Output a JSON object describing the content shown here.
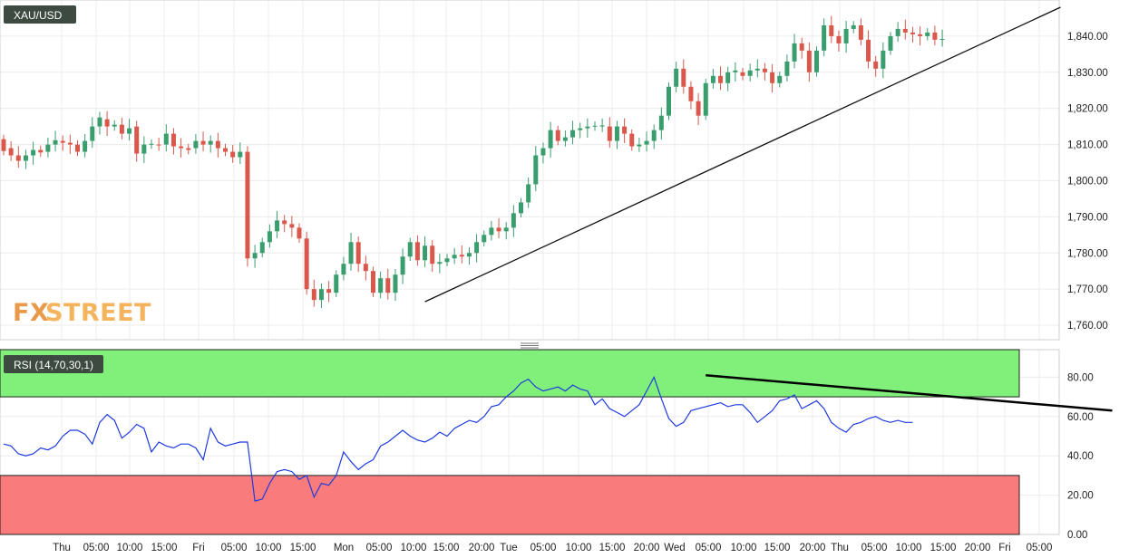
{
  "chart_data": [
    {
      "type": "candlestick",
      "symbol": "XAU/USD",
      "y_ticks": [
        1760,
        1770,
        1780,
        1790,
        1800,
        1810,
        1820,
        1830,
        1840
      ],
      "y_tick_labels": [
        "1,760.00",
        "1,770.00",
        "1,780.00",
        "1,790.00",
        "1,800.00",
        "1,810.00",
        "1,820.00",
        "1,830.00",
        "1,840.00"
      ],
      "ylim": [
        1756,
        1850
      ],
      "x_tick_labels": [
        "Thu",
        "05:00",
        "10:00",
        "15:00",
        "Fri",
        "05:00",
        "10:00",
        "15:00",
        "Mon",
        "05:00",
        "10:00",
        "15:00",
        "20:00",
        "Tue",
        "05:00",
        "10:00",
        "15:00",
        "20:00",
        "Wed",
        "05:00",
        "10:00",
        "15:00",
        "20:00",
        "Thu",
        "05:00",
        "10:00",
        "15:00",
        "20:00",
        "Fri",
        "05:00"
      ],
      "grid": true,
      "candles": [
        [
          1811.5,
          1808.2
        ],
        [
          1809.0,
          1807.0
        ],
        [
          1807.0,
          1805.5
        ],
        [
          1805.5,
          1807.0
        ],
        [
          1807.0,
          1808.5
        ],
        [
          1808.5,
          1807.8
        ],
        [
          1808.0,
          1810.0
        ],
        [
          1810.0,
          1811.2
        ],
        [
          1811.0,
          1810.5
        ],
        [
          1810.5,
          1810.0
        ],
        [
          1810.0,
          1808.0
        ],
        [
          1808.0,
          1811.0
        ],
        [
          1811.0,
          1815.0
        ],
        [
          1815.0,
          1817.5
        ],
        [
          1817.0,
          1815.0
        ],
        [
          1815.0,
          1815.5
        ],
        [
          1815.5,
          1813.0
        ],
        [
          1813.0,
          1814.5
        ],
        [
          1815.0,
          1807.5
        ],
        [
          1807.5,
          1810.0
        ],
        [
          1810.0,
          1810.2
        ],
        [
          1810.0,
          1809.8
        ],
        [
          1810.0,
          1813.0
        ],
        [
          1813.0,
          1809.5
        ],
        [
          1809.5,
          1809.0
        ],
        [
          1809.0,
          1808.5
        ],
        [
          1809.0,
          1811.0
        ],
        [
          1811.0,
          1810.0
        ],
        [
          1810.0,
          1811.0
        ],
        [
          1811.0,
          1809.0
        ],
        [
          1809.0,
          1808.0
        ],
        [
          1808.0,
          1806.5
        ],
        [
          1806.5,
          1808.0
        ],
        [
          1808.0,
          1778.5
        ],
        [
          1778.5,
          1780.0
        ],
        [
          1780.0,
          1783.0
        ],
        [
          1783.0,
          1786.0
        ],
        [
          1786.0,
          1789.0
        ],
        [
          1789.0,
          1788.0
        ],
        [
          1788.0,
          1787.0
        ],
        [
          1787.0,
          1784.0
        ],
        [
          1784.0,
          1770.0
        ],
        [
          1770.0,
          1767.0
        ],
        [
          1767.0,
          1770.0
        ],
        [
          1770.0,
          1769.0
        ],
        [
          1769.0,
          1774.0
        ],
        [
          1774.0,
          1777.0
        ],
        [
          1777.0,
          1783.0
        ],
        [
          1783.0,
          1777.0
        ],
        [
          1777.0,
          1775.0
        ],
        [
          1775.0,
          1769.0
        ],
        [
          1769.0,
          1773.0
        ],
        [
          1773.0,
          1769.0
        ],
        [
          1769.0,
          1774.0
        ],
        [
          1774.0,
          1779.0
        ],
        [
          1779.0,
          1783.0
        ],
        [
          1783.0,
          1778.0
        ],
        [
          1778.0,
          1782.0
        ],
        [
          1782.0,
          1777.0
        ],
        [
          1777.0,
          1777.5
        ],
        [
          1777.5,
          1778.5
        ],
        [
          1778.5,
          1779.5
        ],
        [
          1779.5,
          1779.0
        ],
        [
          1779.0,
          1780.0
        ],
        [
          1780.0,
          1783.0
        ],
        [
          1783.0,
          1785.0
        ],
        [
          1785.0,
          1787.0
        ],
        [
          1787.0,
          1786.0
        ],
        [
          1786.0,
          1787.0
        ],
        [
          1787.0,
          1791.0
        ],
        [
          1791.0,
          1794.0
        ],
        [
          1794.0,
          1799.0
        ],
        [
          1799.0,
          1807.0
        ],
        [
          1807.0,
          1809.0
        ],
        [
          1809.0,
          1814.0
        ],
        [
          1814.0,
          1811.0
        ],
        [
          1811.0,
          1812.0
        ],
        [
          1812.0,
          1814.0
        ],
        [
          1814.0,
          1814.5
        ],
        [
          1814.5,
          1815.0
        ],
        [
          1815.0,
          1815.2
        ],
        [
          1815.0,
          1815.3
        ],
        [
          1815.0,
          1811.0
        ],
        [
          1811.0,
          1815.0
        ],
        [
          1815.0,
          1813.0
        ],
        [
          1813.0,
          1809.5
        ],
        [
          1809.5,
          1810.0
        ],
        [
          1810.0,
          1811.0
        ],
        [
          1811.0,
          1814.0
        ],
        [
          1814.0,
          1818.0
        ],
        [
          1818.0,
          1826.0
        ],
        [
          1826.0,
          1831.0
        ],
        [
          1831.0,
          1826.0
        ],
        [
          1826.0,
          1822.0
        ],
        [
          1822.0,
          1818.0
        ],
        [
          1818.0,
          1827.0
        ],
        [
          1827.0,
          1829.0
        ],
        [
          1829.0,
          1827.0
        ],
        [
          1827.0,
          1830.0
        ],
        [
          1830.0,
          1830.5
        ],
        [
          1830.0,
          1829.0
        ],
        [
          1829.0,
          1830.5
        ],
        [
          1830.5,
          1831.0
        ],
        [
          1831.0,
          1830.0
        ],
        [
          1830.0,
          1827.0
        ],
        [
          1827.0,
          1829.0
        ],
        [
          1829.0,
          1833.0
        ],
        [
          1833.0,
          1838.0
        ],
        [
          1838.0,
          1836.0
        ],
        [
          1836.0,
          1830.0
        ],
        [
          1830.0,
          1836.0
        ],
        [
          1836.0,
          1843.0
        ],
        [
          1843.0,
          1840.0
        ],
        [
          1840.0,
          1838.0
        ],
        [
          1838.0,
          1842.0
        ],
        [
          1842.0,
          1843.0
        ],
        [
          1843.0,
          1839.0
        ],
        [
          1839.0,
          1833.0
        ],
        [
          1833.0,
          1831.0
        ],
        [
          1831.0,
          1836.0
        ],
        [
          1836.0,
          1840.0
        ],
        [
          1840.0,
          1842.0
        ],
        [
          1842.0,
          1841.0
        ],
        [
          1841.0,
          1840.5
        ],
        [
          1840.5,
          1840.0
        ],
        [
          1840.0,
          1841.0
        ],
        [
          1841.0,
          1839.0
        ],
        [
          1839.0,
          1839.2
        ]
      ],
      "trendlines": [
        {
          "from": [
            57,
            1766.5
          ],
          "to": [
            143,
            1848
          ]
        }
      ]
    },
    {
      "type": "line",
      "indicator_label": "RSI (14,70,30,1)",
      "y_ticks": [
        0,
        20,
        40,
        60,
        80
      ],
      "y_tick_labels": [
        "0.00",
        "20.00",
        "40.00",
        "60.00",
        "80.00"
      ],
      "ylim": [
        0,
        94
      ],
      "overbought": 70,
      "oversold": 30,
      "band_colors": {
        "overbought": "#80f07a",
        "oversold": "#f97b7b",
        "line": "#1f3be0"
      },
      "values": [
        46,
        45,
        41,
        40,
        41,
        44,
        43,
        45,
        50,
        53,
        53,
        51,
        46,
        57,
        61,
        58,
        49,
        52,
        56,
        54,
        42,
        47,
        45,
        44,
        46,
        46,
        44,
        38,
        54,
        47,
        45,
        46,
        47,
        47,
        17,
        18,
        26,
        32,
        33,
        32,
        28,
        30,
        19,
        26,
        25,
        30,
        42,
        37,
        33,
        36,
        38,
        45,
        47,
        50,
        53,
        50,
        48,
        47,
        49,
        52,
        50,
        54,
        56,
        58,
        57,
        60,
        65,
        66,
        70,
        73,
        77,
        79,
        75,
        73,
        74,
        75,
        73,
        76,
        74,
        73,
        66,
        69,
        64,
        62,
        60,
        63,
        66,
        73,
        80,
        69,
        59,
        55,
        57,
        63,
        64,
        65,
        66,
        67,
        65,
        66,
        66,
        62,
        57,
        60,
        63,
        68,
        69,
        71,
        64,
        66,
        68,
        64,
        57,
        54,
        52,
        56,
        57,
        59,
        60,
        58,
        57,
        58,
        57,
        57
      ],
      "trendlines": [
        {
          "from": [
            95,
            81
          ],
          "to": [
            150,
            63
          ]
        }
      ]
    }
  ],
  "watermark": {
    "part1": "FX",
    "part2": "STREET",
    "color1": "#e89a4a",
    "color2": "#f4b45e"
  }
}
